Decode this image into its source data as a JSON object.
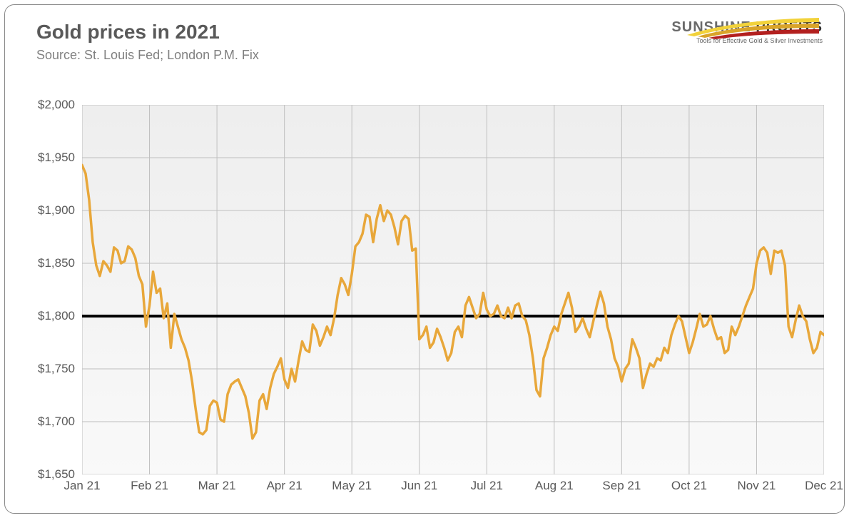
{
  "title": "Gold prices in 2021",
  "subtitle": "Source: St. Louis Fed; London P.M. Fix",
  "logo": {
    "name_a": "SUNSHINE",
    "name_b": " PROFITS",
    "tagline": "Tools for Effective Gold & Silver Investments",
    "swoosh_colors": [
      "#f2d23a",
      "#d9a429",
      "#b3201f"
    ]
  },
  "chart": {
    "type": "line",
    "ylim": [
      1650,
      2000
    ],
    "ytick_step": 50,
    "ytick_prefix": "$",
    "ytick_format": "comma",
    "x_categories": [
      "Jan 21",
      "Feb 21",
      "Mar 21",
      "Apr 21",
      "May 21",
      "Jun 21",
      "Jul 21",
      "Aug 21",
      "Sep 21",
      "Oct 21",
      "Nov 21",
      "Dec 21"
    ],
    "grid_color": "#bfbfbf",
    "grid_width": 1,
    "background_gradient": [
      "#eeeeee",
      "#f9f9f9"
    ],
    "line_color": "#e8a73a",
    "line_width": 3.5,
    "reference_line": {
      "value": 1800,
      "color": "#000000",
      "width": 4
    },
    "axis_label_color": "#595959",
    "axis_label_fontsize": 17,
    "title_color": "#595959",
    "title_fontsize": 28,
    "subtitle_color": "#808080",
    "subtitle_fontsize": 18,
    "series": [
      1943,
      1935,
      1910,
      1870,
      1848,
      1838,
      1852,
      1848,
      1842,
      1865,
      1862,
      1850,
      1852,
      1866,
      1863,
      1855,
      1838,
      1830,
      1790,
      1810,
      1842,
      1822,
      1826,
      1798,
      1812,
      1770,
      1802,
      1790,
      1778,
      1770,
      1758,
      1738,
      1712,
      1690,
      1688,
      1692,
      1715,
      1720,
      1718,
      1702,
      1700,
      1726,
      1735,
      1738,
      1740,
      1732,
      1724,
      1708,
      1684,
      1690,
      1720,
      1726,
      1712,
      1732,
      1745,
      1752,
      1760,
      1740,
      1732,
      1750,
      1738,
      1758,
      1776,
      1768,
      1766,
      1792,
      1786,
      1772,
      1780,
      1790,
      1782,
      1798,
      1820,
      1836,
      1830,
      1820,
      1840,
      1866,
      1870,
      1878,
      1896,
      1894,
      1870,
      1892,
      1905,
      1890,
      1900,
      1896,
      1884,
      1868,
      1890,
      1895,
      1892,
      1862,
      1864,
      1778,
      1782,
      1790,
      1770,
      1775,
      1788,
      1780,
      1770,
      1758,
      1765,
      1785,
      1790,
      1780,
      1810,
      1818,
      1808,
      1798,
      1802,
      1822,
      1806,
      1800,
      1802,
      1810,
      1800,
      1798,
      1808,
      1798,
      1810,
      1812,
      1800,
      1796,
      1782,
      1760,
      1730,
      1724,
      1760,
      1770,
      1782,
      1790,
      1786,
      1802,
      1812,
      1822,
      1808,
      1785,
      1790,
      1798,
      1788,
      1780,
      1795,
      1810,
      1823,
      1812,
      1790,
      1778,
      1760,
      1752,
      1738,
      1750,
      1755,
      1778,
      1770,
      1760,
      1732,
      1745,
      1755,
      1752,
      1760,
      1758,
      1770,
      1765,
      1782,
      1792,
      1800,
      1795,
      1780,
      1765,
      1775,
      1788,
      1802,
      1790,
      1792,
      1800,
      1788,
      1778,
      1780,
      1765,
      1768,
      1790,
      1782,
      1790,
      1800,
      1810,
      1818,
      1826,
      1850,
      1862,
      1865,
      1860,
      1840,
      1862,
      1860,
      1862,
      1848,
      1790,
      1780,
      1796,
      1810,
      1800,
      1795,
      1778,
      1765,
      1770,
      1785,
      1782
    ]
  }
}
